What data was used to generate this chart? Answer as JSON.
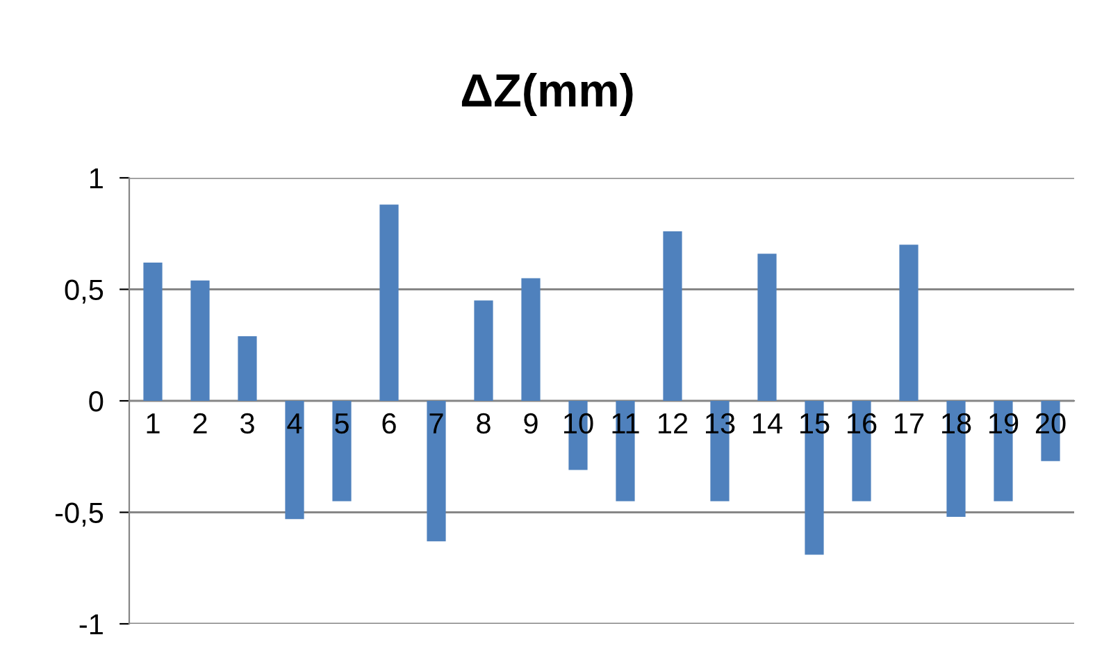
{
  "chart_data": {
    "type": "bar",
    "title": "ΔZ(mm)",
    "categories": [
      "1",
      "2",
      "3",
      "4",
      "5",
      "6",
      "7",
      "8",
      "9",
      "10",
      "11",
      "12",
      "13",
      "14",
      "15",
      "16",
      "17",
      "18",
      "19",
      "20"
    ],
    "values": [
      0.62,
      0.54,
      0.29,
      -0.53,
      -0.45,
      0.88,
      -0.63,
      0.45,
      0.55,
      -0.31,
      -0.45,
      0.76,
      -0.45,
      0.66,
      -0.69,
      -0.45,
      0.7,
      -0.52,
      -0.45,
      -0.27
    ],
    "color": "#4f81bd",
    "ylim": [
      -1,
      1
    ],
    "yticks": [
      {
        "value": -1,
        "label": "-1"
      },
      {
        "value": -0.5,
        "label": "-0,5"
      },
      0,
      {
        "value": 0.5,
        "label": "0,5"
      },
      1
    ],
    "grid": "y"
  }
}
